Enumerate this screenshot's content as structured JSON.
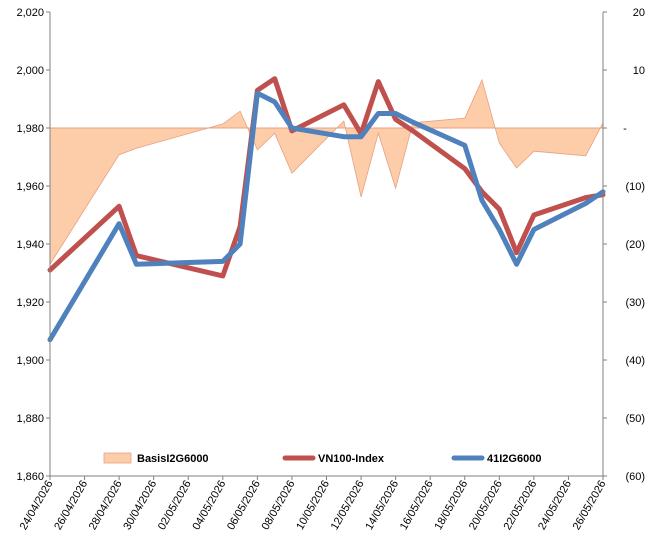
{
  "chart_data": {
    "type": "line",
    "x": [
      "24/04/2026",
      "28/04/2026",
      "29/04/2026",
      "04/05/2026",
      "05/05/2026",
      "06/05/2026",
      "07/05/2026",
      "08/05/2026",
      "11/05/2026",
      "12/05/2026",
      "13/05/2026",
      "14/05/2026",
      "15/05/2026",
      "18/05/2026",
      "19/05/2026",
      "20/05/2026",
      "21/05/2026",
      "22/05/2026",
      "25/05/2026",
      "26/05/2026"
    ],
    "x_ticks": [
      "24/04/2026",
      "26/04/2026",
      "28/04/2026",
      "30/04/2026",
      "02/05/2026",
      "04/05/2026",
      "06/05/2026",
      "08/05/2026",
      "10/05/2026",
      "12/05/2026",
      "14/05/2026",
      "16/05/2026",
      "18/05/2026",
      "20/05/2026",
      "22/05/2026",
      "24/05/2026",
      "26/05/2026"
    ],
    "x_range": [
      "24/04/2026",
      "26/05/2026"
    ],
    "y_left": {
      "min": 1860,
      "max": 2020,
      "step": 20,
      "ticks": [
        "1,860",
        "1,880",
        "1,900",
        "1,920",
        "1,940",
        "1,960",
        "1,980",
        "2,000",
        "2,020"
      ]
    },
    "y_right": {
      "min": -60,
      "max": 20,
      "step": 10,
      "ticks": [
        "(60)",
        "(50)",
        "(40)",
        "(30)",
        "(20)",
        "(10)",
        "-",
        "10",
        "20"
      ]
    },
    "series": [
      {
        "name": "BasisI2G6000",
        "kind": "area",
        "axis": "right",
        "color": "#fccda8",
        "stroke": "#e8a080",
        "values": [
          -23.5,
          -4.6,
          -3.5,
          0.7,
          2.9,
          -3.8,
          -0.9,
          -7.8,
          1.2,
          -11.9,
          -0.9,
          -10.4,
          0.9,
          1.7,
          8.3,
          -2.6,
          -6.9,
          -4.0,
          -4.8,
          0.9
        ]
      },
      {
        "name": "VN100-Index",
        "kind": "line",
        "axis": "left",
        "color": "#c0504d",
        "values": [
          1931,
          1953,
          1936,
          1929,
          1946,
          1993,
          1997,
          1979,
          1988,
          1978,
          1996,
          1983,
          1979,
          1966,
          1958,
          1952,
          1937,
          1950,
          1956,
          1957
        ]
      },
      {
        "name": "41I2G6000",
        "kind": "line",
        "axis": "left",
        "color": "#4f81bd",
        "values": [
          1907,
          1947,
          1933,
          1934,
          1940,
          1992,
          1989,
          1980,
          1977,
          1977,
          1985,
          1985,
          1982,
          1974,
          1955,
          1945,
          1933,
          1945,
          1954,
          1958
        ]
      }
    ],
    "legend_position": "bottom-inside",
    "grid": false,
    "reference_line_right": 0
  }
}
